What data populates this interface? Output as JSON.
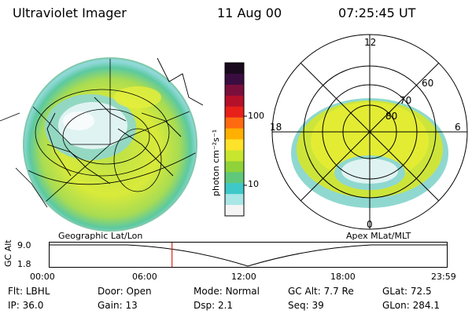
{
  "header": {
    "title": "Ultraviolet Imager",
    "date": "11 Aug 00",
    "time": "07:25:45 UT"
  },
  "colorbar": {
    "unit_label": "photon cm⁻²s⁻¹",
    "ticks": [
      "100",
      "10"
    ],
    "colors": [
      "#1a0a1e",
      "#3a0d40",
      "#7a0f3c",
      "#b5102a",
      "#e8201a",
      "#ff6a10",
      "#ffb000",
      "#ffe22a",
      "#c9e62e",
      "#8fd23a",
      "#5fc87a",
      "#3ec8c8",
      "#a9e6e6",
      "#f4f4f4"
    ]
  },
  "left_panel": {
    "label": "Geographic Lat/Lon"
  },
  "right_panel": {
    "label": "Apex MLat/MLT",
    "lat_labels": [
      "60",
      "70",
      "80"
    ],
    "mlt_labels": {
      "top": "12",
      "left": "18",
      "right": "6",
      "bottom": "0"
    }
  },
  "timeline": {
    "axis_label": "GC Alt",
    "y_ticks": [
      "9.0",
      "1.8"
    ],
    "x_ticks": [
      "00:00",
      "06:00",
      "12:00",
      "18:00",
      "23:59"
    ],
    "current_time_hours": 7.43,
    "marker_color": "#d42a1a"
  },
  "status": {
    "col1": [
      {
        "key": "Flt:",
        "value": "LBHL"
      },
      {
        "key": "IP:",
        "value": "36.0"
      }
    ],
    "col2": [
      {
        "key": "Door:",
        "value": "Open"
      },
      {
        "key": "Gain:",
        "value": "13"
      }
    ],
    "col3": [
      {
        "key": "Mode:",
        "value": "Normal"
      },
      {
        "key": "Dsp:",
        "value": "2.1"
      }
    ],
    "col4": [
      {
        "key": "GC Alt:",
        "value": "7.7 Re"
      },
      {
        "key": "Seq:",
        "value": "39"
      }
    ],
    "col5": [
      {
        "key": "GLat:",
        "value": "72.5"
      },
      {
        "key": "GLon:",
        "value": "284.1"
      }
    ]
  }
}
